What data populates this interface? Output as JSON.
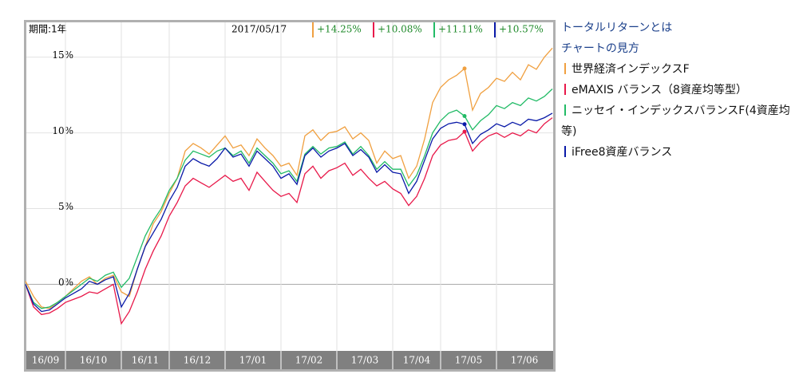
{
  "period_label": "期間:1年",
  "links": [
    "トータルリターンとは",
    "チャートの見方"
  ],
  "chart_data": {
    "type": "line",
    "categories": [
      "16/09",
      null,
      null,
      null,
      null,
      "16/10",
      null,
      null,
      null,
      null,
      null,
      null,
      "16/11",
      null,
      null,
      null,
      null,
      null,
      "16/12",
      null,
      null,
      null,
      null,
      null,
      null,
      "17/01",
      null,
      null,
      null,
      null,
      null,
      null,
      "17/02",
      null,
      null,
      null,
      null,
      null,
      null,
      "17/03",
      null,
      null,
      null,
      null,
      null,
      null,
      "17/04",
      null,
      null,
      null,
      null,
      null,
      "17/05",
      null,
      null,
      null,
      null,
      null,
      null,
      "17/06",
      null,
      null,
      null,
      null,
      null,
      null,
      null
    ],
    "ylim": [
      -4.4,
      17.3
    ],
    "yticks": [
      {
        "value": 0,
        "label": "0%"
      },
      {
        "value": 5,
        "label": "5%"
      },
      {
        "value": 10,
        "label": "10%"
      },
      {
        "value": 15,
        "label": "15%"
      }
    ],
    "grid": true,
    "hover": {
      "date": "2017/05/17",
      "index": 55
    },
    "series": [
      {
        "name": "世界経済インデックスF",
        "color": "#f0a040",
        "hover_label": "+14.25%",
        "values": [
          0.2,
          -0.8,
          -1.5,
          -1.6,
          -1.2,
          -0.8,
          -0.3,
          0.2,
          0.5,
          0.0,
          0.4,
          0.6,
          -0.5,
          -0.8,
          1.0,
          2.5,
          4.0,
          4.8,
          6.0,
          7.0,
          8.8,
          9.3,
          9.0,
          8.6,
          9.2,
          9.8,
          9.0,
          9.2,
          8.5,
          9.6,
          9.0,
          8.5,
          7.8,
          8.0,
          7.2,
          9.8,
          10.2,
          9.5,
          10.0,
          10.1,
          10.4,
          9.6,
          10.0,
          9.5,
          8.0,
          8.8,
          8.3,
          8.5,
          7.0,
          7.8,
          9.6,
          12.0,
          13.0,
          13.5,
          13.8,
          14.25,
          11.5,
          12.6,
          13.0,
          13.6,
          13.4,
          14.0,
          13.5,
          14.5,
          14.2,
          15.0,
          15.6
        ]
      },
      {
        "name": "eMAXIS バランス（8資産均等型）",
        "color": "#e8194a",
        "hover_label": "+10.08%",
        "values": [
          0,
          -1.5,
          -2.0,
          -1.9,
          -1.6,
          -1.2,
          -1.0,
          -0.8,
          -0.5,
          -0.6,
          -0.3,
          0.0,
          -2.6,
          -1.8,
          -0.5,
          1.0,
          2.2,
          3.2,
          4.5,
          5.4,
          6.5,
          7.0,
          6.7,
          6.4,
          6.8,
          7.2,
          6.8,
          7.0,
          6.2,
          7.4,
          6.8,
          6.2,
          5.8,
          6.0,
          5.4,
          7.3,
          7.8,
          7.0,
          7.5,
          7.7,
          8.0,
          7.2,
          7.6,
          7.0,
          6.5,
          6.8,
          6.3,
          6.0,
          5.2,
          5.8,
          7.0,
          8.5,
          9.2,
          9.5,
          9.6,
          10.08,
          8.8,
          9.4,
          9.8,
          10.0,
          9.7,
          10.0,
          9.8,
          10.2,
          10.0,
          10.6,
          11.0
        ]
      },
      {
        "name": "ニッセイ・インデックスバランスF(4資産均等)",
        "color": "#22bb66",
        "hover_label": "+11.11%",
        "values": [
          0,
          -1.2,
          -1.6,
          -1.5,
          -1.2,
          -0.8,
          -0.4,
          0,
          0.4,
          0.2,
          0.6,
          0.8,
          -0.2,
          0.4,
          1.8,
          3.2,
          4.2,
          5.0,
          6.2,
          7.0,
          8.2,
          8.8,
          8.6,
          8.4,
          8.8,
          9.0,
          8.5,
          8.8,
          8.0,
          9.0,
          8.5,
          8.0,
          7.3,
          7.5,
          6.8,
          8.6,
          9.1,
          8.6,
          9.0,
          9.1,
          9.4,
          8.6,
          9.1,
          8.5,
          7.6,
          8.1,
          7.6,
          7.6,
          6.5,
          7.2,
          8.5,
          10.0,
          10.8,
          11.3,
          11.5,
          11.11,
          10.2,
          10.8,
          11.2,
          11.8,
          11.6,
          12.0,
          11.8,
          12.3,
          12.1,
          12.4,
          12.9
        ]
      },
      {
        "name": "iFree8資産バランス",
        "color": "#0a1aa8",
        "hover_label": "+10.57%",
        "values": [
          0,
          -1.3,
          -1.8,
          -1.7,
          -1.3,
          -0.9,
          -0.6,
          -0.3,
          0.2,
          0,
          0.3,
          0.5,
          -1.5,
          -0.6,
          1.0,
          2.5,
          3.4,
          4.3,
          5.5,
          6.4,
          7.8,
          8.3,
          8.0,
          7.8,
          8.3,
          9.0,
          8.4,
          8.6,
          7.8,
          8.8,
          8.3,
          7.8,
          7.0,
          7.3,
          6.6,
          8.5,
          9.0,
          8.4,
          8.8,
          9.0,
          9.3,
          8.5,
          8.9,
          8.4,
          7.4,
          7.9,
          7.4,
          7.3,
          6.0,
          6.8,
          8.2,
          9.6,
          10.3,
          10.6,
          10.7,
          10.57,
          9.3,
          9.9,
          10.2,
          10.6,
          10.4,
          10.7,
          10.5,
          10.9,
          10.8,
          11.0,
          11.3
        ]
      }
    ]
  }
}
